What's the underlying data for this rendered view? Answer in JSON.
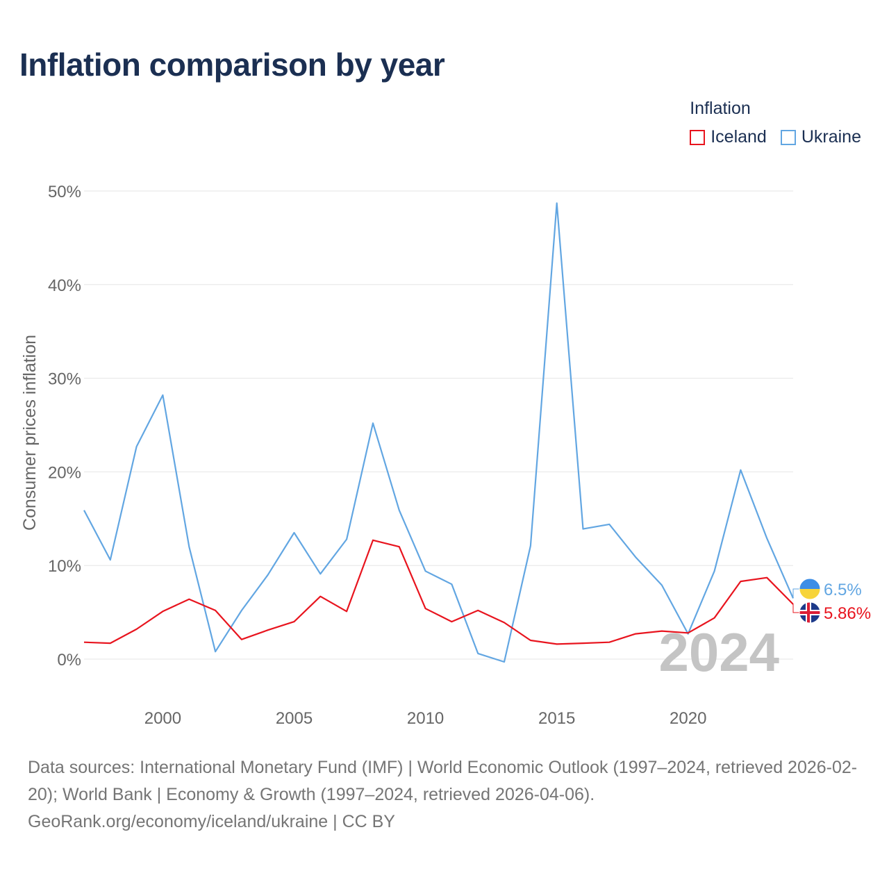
{
  "title": "Inflation comparison by year",
  "legend": {
    "title": "Inflation",
    "items": [
      {
        "label": "Iceland",
        "color": "#e8141e"
      },
      {
        "label": "Ukraine",
        "color": "#62a6e2"
      }
    ]
  },
  "watermark_year": "2024",
  "footer": {
    "sources": "Data sources: International Monetary Fund (IMF) | World Economic Outlook (1997–2024, retrieved 2026-02-20); World Bank | Economy & Growth (1997–2024, retrieved 2026-04-06).",
    "credit": "GeoRank.org/economy/iceland/ukraine | CC BY"
  },
  "chart_data": {
    "type": "line",
    "title": "Inflation comparison by year",
    "xlabel": "",
    "ylabel": "Consumer prices inflation",
    "xlim": [
      1997,
      2024
    ],
    "ylim": [
      -5,
      50
    ],
    "yticks": [
      0,
      10,
      20,
      30,
      40,
      50
    ],
    "ytick_labels": [
      "0%",
      "10%",
      "20%",
      "30%",
      "40%",
      "50%"
    ],
    "xticks": [
      2000,
      2005,
      2010,
      2015,
      2020
    ],
    "xtick_labels": [
      "2000",
      "2005",
      "2010",
      "2015",
      "2020"
    ],
    "grid": true,
    "legend_position": "top-right",
    "x": [
      1997,
      1998,
      1999,
      2000,
      2001,
      2002,
      2003,
      2004,
      2005,
      2006,
      2007,
      2008,
      2009,
      2010,
      2011,
      2012,
      2013,
      2014,
      2015,
      2016,
      2017,
      2018,
      2019,
      2020,
      2021,
      2022,
      2023,
      2024
    ],
    "series": [
      {
        "name": "Ukraine",
        "color": "#62a6e2",
        "values": [
          15.9,
          10.6,
          22.7,
          28.2,
          12.0,
          0.8,
          5.2,
          9.0,
          13.5,
          9.1,
          12.8,
          25.2,
          15.9,
          9.4,
          8.0,
          0.6,
          -0.3,
          12.1,
          48.7,
          13.9,
          14.4,
          10.9,
          7.9,
          2.7,
          9.4,
          20.2,
          12.9,
          6.5
        ],
        "end_label": "6.5%"
      },
      {
        "name": "Iceland",
        "color": "#e8141e",
        "values": [
          1.8,
          1.7,
          3.2,
          5.1,
          6.4,
          5.2,
          2.1,
          3.1,
          4.0,
          6.7,
          5.1,
          12.7,
          12.0,
          5.4,
          4.0,
          5.2,
          3.9,
          2.0,
          1.6,
          1.7,
          1.8,
          2.7,
          3.0,
          2.8,
          4.4,
          8.3,
          8.7,
          5.86
        ],
        "end_label": "5.86%"
      }
    ]
  }
}
